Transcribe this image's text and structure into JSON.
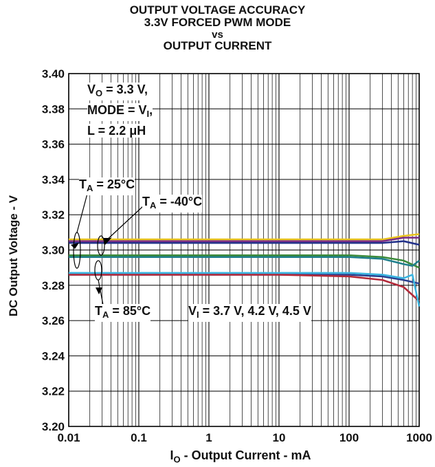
{
  "titles": {
    "line1": "OUTPUT VOLTAGE ACCURACY",
    "line2": "3.3V FORCED PWM MODE",
    "line3": "vs",
    "line4": "OUTPUT CURRENT"
  },
  "axes": {
    "ylabel": "DC Output Voltage - V",
    "xlabel_main": "I",
    "xlabel_sub": "O",
    "xlabel_rest": " - Output Current - mA"
  },
  "annotations": {
    "conditions": {
      "vo_main": "V",
      "vo_sub": "O",
      "vo_rest": " = 3.3 V,",
      "mode_main": "MODE = V",
      "mode_sub": "I",
      "mode_rest": ",",
      "l_text": "L = 2.2 μH"
    },
    "ta25": {
      "main": "T",
      "sub": "A",
      "rest": " = 25°C"
    },
    "ta_m40": {
      "main": "T",
      "sub": "A",
      "rest": " = -40°C"
    },
    "ta85": {
      "main": "T",
      "sub": "A",
      "rest": " = 85°C"
    },
    "vi": {
      "main": "V",
      "sub": "I",
      "rest": " = 3.7 V, 4.2 V, 4.5 V"
    }
  },
  "colors": {
    "yellow": "#e8c21c",
    "purple": "#7a2f86",
    "navy": "#23328a",
    "green": "#3c8a3a",
    "teal": "#1f7f8c",
    "darkblue": "#2a3f8f",
    "red": "#b32a3a",
    "cyan": "#3ab4e0",
    "grid": "#000000"
  },
  "chart_data": {
    "type": "line",
    "title": "OUTPUT VOLTAGE ACCURACY 3.3V FORCED PWM MODE vs OUTPUT CURRENT",
    "xlabel": "IO - Output Current - mA",
    "ylabel": "DC Output Voltage - V",
    "xscale": "log",
    "xlim": [
      0.01,
      1000
    ],
    "ylim": [
      3.2,
      3.4
    ],
    "x_ticks": [
      "0.01",
      "0.1",
      "1",
      "10",
      "100",
      "1000"
    ],
    "y_ticks": [
      "3.20",
      "3.22",
      "3.24",
      "3.26",
      "3.28",
      "3.30",
      "3.32",
      "3.34",
      "3.36",
      "3.38",
      "3.40"
    ],
    "grid": true,
    "series": [
      {
        "color_key": "yellow",
        "x": [
          0.01,
          0.1,
          1,
          10,
          100,
          300,
          600,
          1000
        ],
        "y": [
          3.306,
          3.306,
          3.306,
          3.306,
          3.306,
          3.306,
          3.308,
          3.309
        ]
      },
      {
        "color_key": "purple",
        "x": [
          0.01,
          0.1,
          1,
          10,
          100,
          300,
          600,
          1000
        ],
        "y": [
          3.305,
          3.305,
          3.305,
          3.305,
          3.305,
          3.305,
          3.307,
          3.307
        ]
      },
      {
        "color_key": "navy",
        "x": [
          0.01,
          0.1,
          1,
          10,
          100,
          300,
          600,
          1000
        ],
        "y": [
          3.304,
          3.304,
          3.304,
          3.304,
          3.304,
          3.304,
          3.305,
          3.303
        ]
      },
      {
        "color_key": "green",
        "x": [
          0.01,
          0.1,
          1,
          10,
          100,
          300,
          600,
          1000
        ],
        "y": [
          3.297,
          3.297,
          3.297,
          3.297,
          3.297,
          3.296,
          3.294,
          3.29
        ]
      },
      {
        "color_key": "teal",
        "x": [
          0.01,
          0.1,
          1,
          10,
          100,
          300,
          600,
          800,
          1000
        ],
        "y": [
          3.296,
          3.296,
          3.296,
          3.296,
          3.296,
          3.295,
          3.292,
          3.291,
          3.294
        ]
      },
      {
        "color_key": "darkblue",
        "x": [
          0.01,
          0.1,
          1,
          10,
          100,
          300,
          600,
          1000
        ],
        "y": [
          3.286,
          3.286,
          3.286,
          3.286,
          3.286,
          3.285,
          3.283,
          3.281
        ]
      },
      {
        "color_key": "red",
        "x": [
          0.01,
          0.1,
          1,
          10,
          100,
          300,
          600,
          1000
        ],
        "y": [
          3.286,
          3.286,
          3.286,
          3.286,
          3.285,
          3.283,
          3.279,
          3.271
        ]
      },
      {
        "color_key": "cyan",
        "x": [
          0.01,
          0.1,
          1,
          10,
          100,
          300,
          600,
          800,
          1000
        ],
        "y": [
          3.287,
          3.287,
          3.287,
          3.287,
          3.287,
          3.286,
          3.284,
          3.286,
          3.268
        ]
      }
    ]
  }
}
